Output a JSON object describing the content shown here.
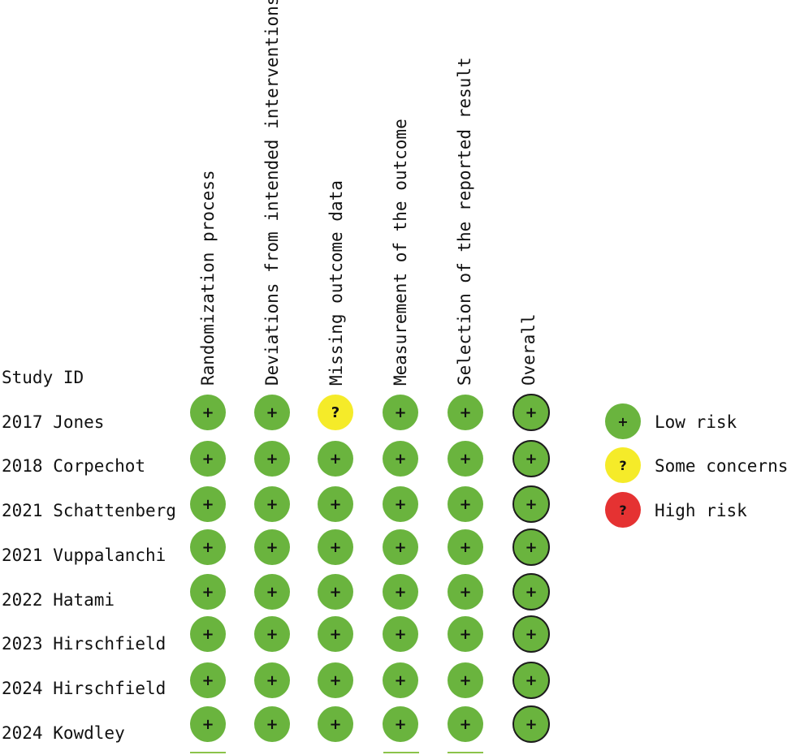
{
  "domains": [
    "Randomization process",
    "Deviations from intended interventions",
    "Missing outcome data",
    "Measurement of the outcome",
    "Selection of the reported result",
    "Overall"
  ],
  "study_header": "Study ID",
  "studies": [
    {
      "id": "2017 Jones",
      "judgements": [
        "low",
        "low",
        "some",
        "low",
        "low",
        "low"
      ]
    },
    {
      "id": "2018 Corpechot",
      "judgements": [
        "low",
        "low",
        "low",
        "low",
        "low",
        "low"
      ]
    },
    {
      "id": "2021 Schattenberg",
      "judgements": [
        "low",
        "low",
        "low",
        "low",
        "low",
        "low"
      ]
    },
    {
      "id": "2021 Vuppalanchi",
      "judgements": [
        "low",
        "low",
        "low",
        "low",
        "low",
        "low"
      ]
    },
    {
      "id": "2022 Hatami",
      "judgements": [
        "low",
        "low",
        "low",
        "low",
        "low",
        "low"
      ]
    },
    {
      "id": "2023 Hirschfield",
      "judgements": [
        "low",
        "low",
        "low",
        "low",
        "low",
        "low"
      ]
    },
    {
      "id": "2024 Hirschfield",
      "judgements": [
        "low",
        "low",
        "low",
        "low",
        "low",
        "low"
      ]
    },
    {
      "id": "2024 Kowdley",
      "judgements": [
        "low",
        "low",
        "low",
        "low",
        "low",
        "low"
      ]
    }
  ],
  "legend": [
    {
      "key": "low",
      "symbol": "+",
      "label": "Low risk",
      "color": "#6ab43e"
    },
    {
      "key": "some",
      "symbol": "?",
      "label": "Some concerns",
      "color": "#f5eb29"
    },
    {
      "key": "high",
      "symbol": "?",
      "label": "High risk",
      "color": "#e53232"
    }
  ]
}
